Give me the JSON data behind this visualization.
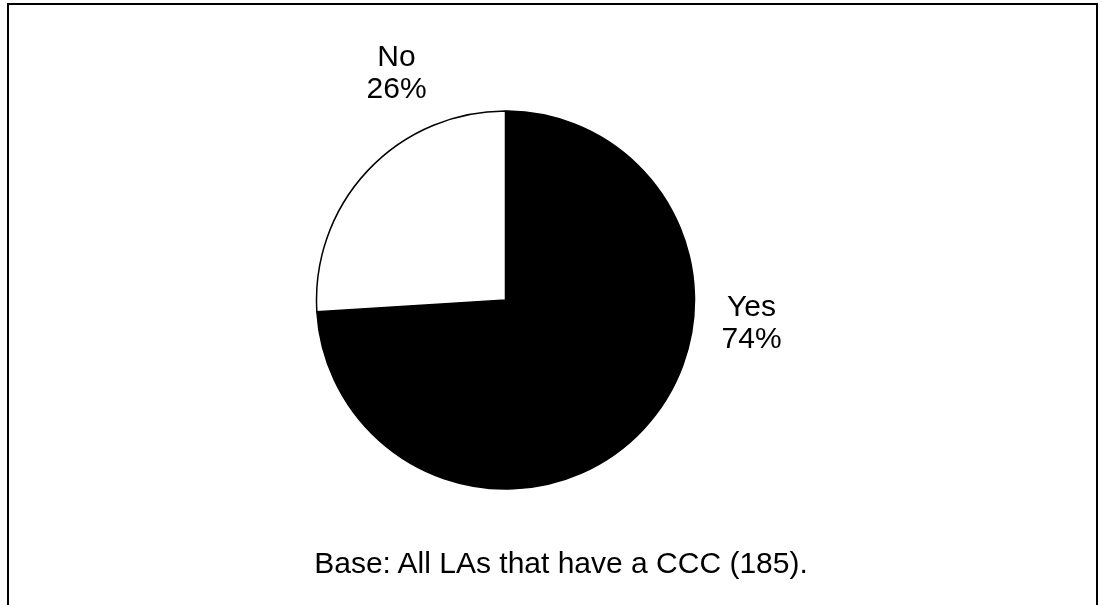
{
  "chart_data": {
    "type": "pie",
    "categories": [
      "Yes",
      "No"
    ],
    "values": [
      74,
      26
    ],
    "colors": [
      "#000000",
      "#ffffff"
    ],
    "value_labels": [
      "74%",
      "26%"
    ],
    "annotations": [
      "Base: All LAs that have a CCC (185)."
    ]
  }
}
